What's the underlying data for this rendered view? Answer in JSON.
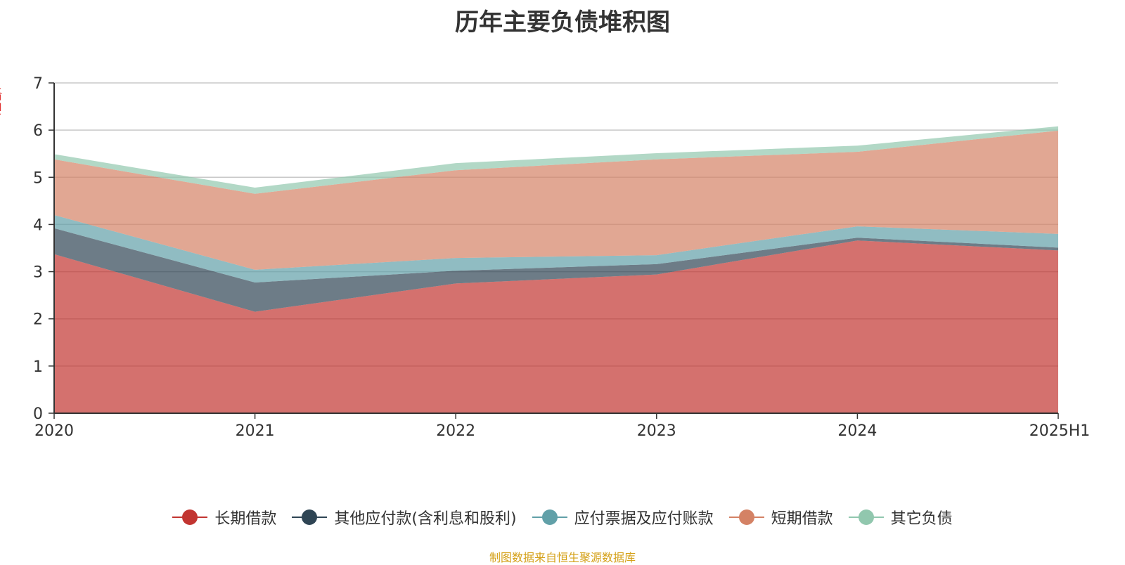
{
  "chart_data": {
    "type": "area",
    "stacked": true,
    "title": "历年主要负债堆积图",
    "unit_label": "(亿元)",
    "categories": [
      "2020",
      "2021",
      "2022",
      "2023",
      "2024",
      "2025H1"
    ],
    "ylim": [
      0,
      7
    ],
    "yticks": [
      "0",
      "1",
      "2",
      "3",
      "4",
      "5",
      "6",
      "7"
    ],
    "grid": true,
    "legend_position": "bottom",
    "series": [
      {
        "name": "长期借款",
        "color": "#c23531",
        "values": [
          3.37,
          2.15,
          2.75,
          2.94,
          3.66,
          3.45
        ]
      },
      {
        "name": "其他应付款(含利息和股利)",
        "color": "#2f4554",
        "values": [
          0.55,
          0.62,
          0.27,
          0.22,
          0.06,
          0.06
        ]
      },
      {
        "name": "应付票据及应付账款",
        "color": "#61a0a8",
        "values": [
          0.28,
          0.27,
          0.27,
          0.19,
          0.24,
          0.29
        ]
      },
      {
        "name": "短期借款",
        "color": "#d48265",
        "values": [
          1.18,
          1.61,
          1.86,
          2.03,
          1.58,
          2.19
        ]
      },
      {
        "name": "其它负债",
        "color": "#91c7ae",
        "values": [
          0.11,
          0.13,
          0.15,
          0.13,
          0.13,
          0.09
        ]
      }
    ],
    "source": "制图数据来自恒生聚源数据库"
  }
}
